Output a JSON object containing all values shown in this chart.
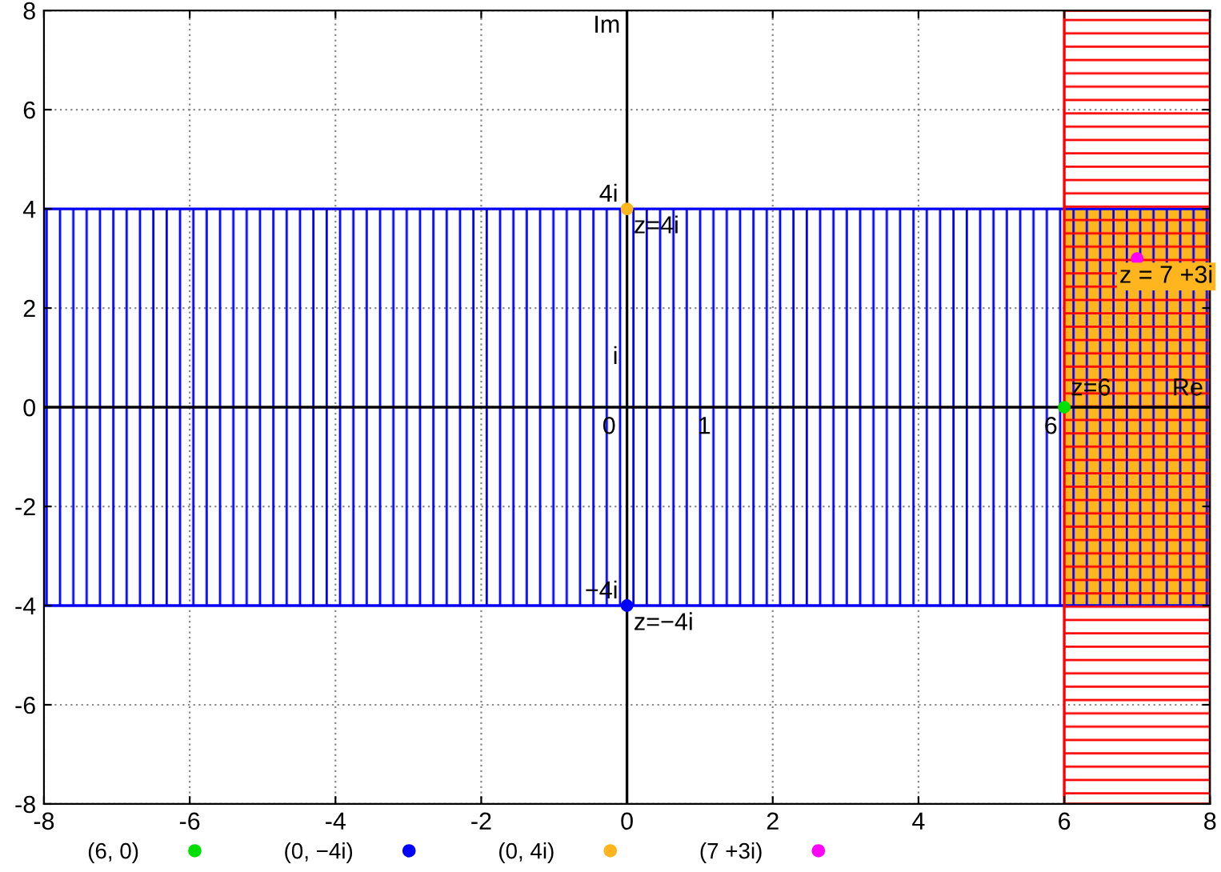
{
  "chart_data": {
    "type": "scatter",
    "xlim": [
      -8,
      8
    ],
    "ylim": [
      -8,
      8
    ],
    "xticks": [
      -8,
      -6,
      -4,
      -2,
      0,
      2,
      4,
      6,
      8
    ],
    "yticks": [
      -8,
      -6,
      -4,
      -2,
      0,
      2,
      4,
      6,
      8
    ],
    "grid": true,
    "legend": "bottom",
    "series": [
      {
        "name": "(6, 0)",
        "marker": "circle",
        "color": "#00e000",
        "x": [
          6
        ],
        "values": [
          0
        ]
      },
      {
        "name": "(0, −4i)",
        "marker": "circle",
        "color": "#0000ff",
        "x": [
          0
        ],
        "values": [
          -4
        ]
      },
      {
        "name": "(0, 4i)",
        "marker": "circle",
        "color": "#ffb61e",
        "x": [
          0
        ],
        "values": [
          4
        ]
      },
      {
        "name": "(7 +3i)",
        "marker": "circle",
        "color": "#ff00ff",
        "x": [
          7
        ],
        "values": [
          3
        ]
      },
      {
        "type": "area",
        "color": "#ffb61e",
        "x": [
          6,
          8
        ],
        "values": [
          4,
          4
        ]
      },
      {
        "type": "area",
        "color": "#ffb61e",
        "x": [
          6,
          8
        ],
        "values": [
          -4,
          -4
        ]
      }
    ],
    "bands": [
      {
        "axis": "y",
        "from": -4,
        "to": 4,
        "color": "#0000ff"
      },
      {
        "axis": "x",
        "from": 6,
        "to": 8,
        "color": "#ff0000"
      }
    ],
    "annotations": [
      "Im",
      {
        "text": "Re",
        "x": 8,
        "y": 0
      },
      {
        "text": "4i",
        "x": 0,
        "y": 4
      },
      {
        "text": "z=4i",
        "x": 0,
        "y": 4
      },
      "i",
      "0",
      "1",
      {
        "text": "6",
        "x": 6,
        "y": 0
      },
      {
        "text": "z=6",
        "x": 6,
        "y": 0
      },
      {
        "text": "z = 7 +3i",
        "x": 7,
        "y": 3
      },
      {
        "text": "−4i",
        "x": 0,
        "y": -4
      },
      {
        "text": "z=−4i",
        "x": 0,
        "y": -4
      }
    ]
  }
}
